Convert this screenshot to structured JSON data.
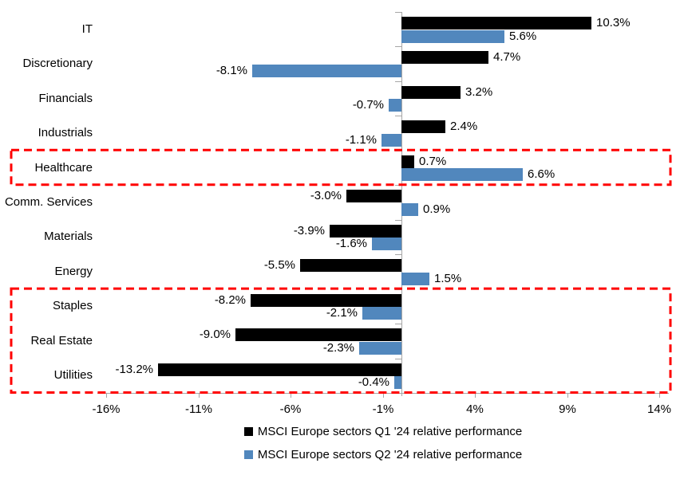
{
  "chart_data": {
    "type": "bar",
    "orientation": "horizontal",
    "title": "",
    "xlabel": "",
    "ylabel": "",
    "categories": [
      "IT",
      "Discretionary",
      "Financials",
      "Industrials",
      "Healthcare",
      "Comm. Services",
      "Materials",
      "Energy",
      "Staples",
      "Real Estate",
      "Utilities"
    ],
    "series": [
      {
        "name": "MSCI Europe sectors Q1 '24 relative performance",
        "color": "#000000",
        "values": [
          10.3,
          4.7,
          3.2,
          2.4,
          0.7,
          -3.0,
          -3.9,
          -5.5,
          -8.2,
          -9.0,
          -13.2
        ]
      },
      {
        "name": "MSCI Europe sectors Q2 '24 relative performance",
        "color": "#5187BD",
        "values": [
          5.6,
          -8.1,
          -0.7,
          -1.1,
          6.6,
          0.9,
          -1.6,
          1.5,
          -2.1,
          -2.3,
          -0.4
        ]
      }
    ],
    "value_label_suffix": "%",
    "x_ticks": [
      -16,
      -11,
      -6,
      -1,
      4,
      9,
      14
    ],
    "x_tick_labels": [
      "-16%",
      "-11%",
      "-6%",
      "-1%",
      "4%",
      "9%",
      "14%"
    ],
    "xlim": [
      -16.5,
      14.5
    ],
    "grid": false,
    "axis_color": "#A6A6A6",
    "legend_position": "bottom",
    "highlights": [
      {
        "name": "healthcare-highlight",
        "rows": [
          4,
          4
        ],
        "color": "#FF0000"
      },
      {
        "name": "staples-realestate-utilities-highlight",
        "rows": [
          8,
          10
        ],
        "color": "#FF0000"
      }
    ]
  }
}
